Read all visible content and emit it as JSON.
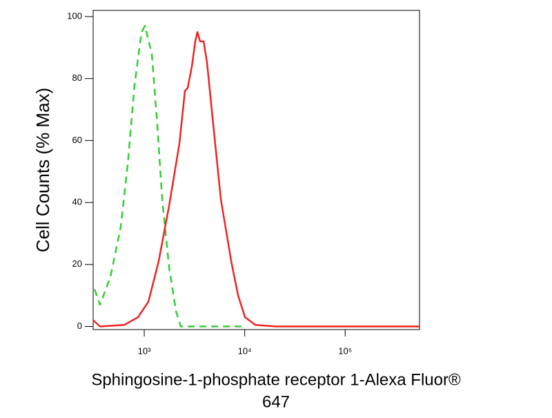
{
  "chart_data": {
    "type": "line",
    "ylabel": "Cell Counts (% Max)",
    "xlabel": [
      "Sphingosine-1-phosphate receptor 1-Alexa Fluor®",
      "647"
    ],
    "xscale": "log",
    "xlim": [
      310,
      550000
    ],
    "ylim": [
      -1,
      102
    ],
    "xticks": [
      {
        "value": 1000,
        "label": "10³"
      },
      {
        "value": 10000,
        "label": "10⁴"
      },
      {
        "value": 100000,
        "label": "10⁵"
      }
    ],
    "yticks": [
      0,
      20,
      40,
      60,
      80,
      100
    ],
    "series": [
      {
        "color": "#33cc33",
        "style": "dashed",
        "x": [
          320,
          363,
          460,
          583,
          684,
          801,
          939,
          1016,
          1190,
          1350,
          1510,
          1770,
          2070,
          2310,
          4220,
          9310
        ],
        "values": [
          12,
          7,
          16,
          32,
          52,
          78,
          95,
          97,
          88,
          65,
          41,
          19,
          5,
          0,
          0,
          0
        ]
      },
      {
        "color": "#ee2222",
        "style": "solid",
        "x": [
          310,
          363,
          632,
          867,
          1100,
          1390,
          1770,
          2240,
          2540,
          2710,
          2980,
          3220,
          3380,
          3600,
          3900,
          4220,
          4940,
          5790,
          7340,
          8600,
          10070,
          12790,
          20560,
          550000
        ],
        "values": [
          2,
          0,
          0.5,
          3,
          8,
          21,
          39,
          59,
          76,
          77,
          84,
          92,
          95,
          92,
          92,
          85,
          63,
          41,
          21,
          10,
          3,
          0.5,
          0,
          0
        ]
      }
    ]
  }
}
